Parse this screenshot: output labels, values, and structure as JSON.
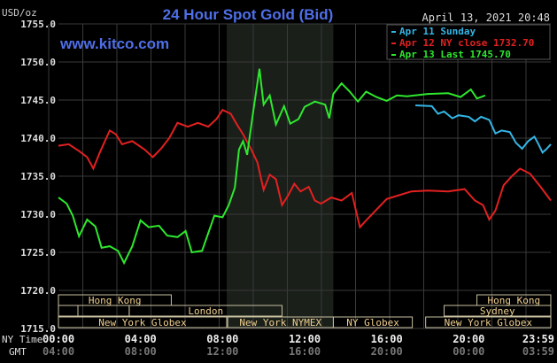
{
  "header": {
    "title": "24 Hour Spot Gold (Bid)",
    "datetime": "April 13, 2021 20:48",
    "units": "USD/oz",
    "site": "www.kitco.com"
  },
  "legend": [
    {
      "label": "Apr 11 Sunday",
      "color": "#33b5e5"
    },
    {
      "label": "Apr 12 NY close 1732.70",
      "color": "#e32020"
    },
    {
      "label": "Apr 13 Last 1745.70",
      "color": "#2ee82e"
    }
  ],
  "sessions": [
    {
      "label": "Hong Kong",
      "start": 0,
      "end": 5.5,
      "row": 0,
      "show": true
    },
    {
      "label": "Hong Kong",
      "start": 20.4,
      "end": 24,
      "row": 0,
      "show": true
    },
    {
      "label": "",
      "start": 0,
      "end": 0.95,
      "row": 1,
      "show": false
    },
    {
      "label": "",
      "start": 0.95,
      "end": 3.45,
      "row": 1,
      "show": false
    },
    {
      "label": "London",
      "start": 3.45,
      "end": 10.9,
      "row": 1,
      "show": true
    },
    {
      "label": "Sydney",
      "start": 18.8,
      "end": 24,
      "row": 1,
      "show": true
    },
    {
      "label": "New York Globex",
      "start": 0,
      "end": 8.2,
      "row": 2,
      "show": true
    },
    {
      "label": "New York NYMEX",
      "start": 8.25,
      "end": 13.4,
      "row": 2,
      "show": true
    },
    {
      "label": "NY Globex",
      "start": 13.4,
      "end": 17.25,
      "row": 2,
      "show": true
    },
    {
      "label": "New York Globex",
      "start": 17.9,
      "end": 24,
      "row": 2,
      "show": true
    }
  ],
  "time_labels": {
    "ny_label": "NY Time",
    "gmt_label": "GMT",
    "ny": [
      [
        "00:00",
        0
      ],
      [
        "04:00",
        4
      ],
      [
        "08:00",
        8
      ],
      [
        "12:00",
        12
      ],
      [
        "16:00",
        16
      ],
      [
        "20:00",
        20
      ],
      [
        "23:59",
        24
      ]
    ],
    "gmt": [
      "04:00",
      "08:00",
      "12:00",
      "16:00",
      "20:00",
      "00:00",
      "03:59"
    ]
  },
  "chart_data": {
    "type": "line",
    "title": "24 Hour Spot Gold (Bid)",
    "ylabel": "USD/oz",
    "xlabel": "NY Time",
    "ylim": [
      1715,
      1755
    ],
    "xlim": [
      0,
      24
    ],
    "yticks": [
      "1755.0",
      "1750.0",
      "1745.0",
      "1740.0",
      "1735.0",
      "1730.0",
      "1725.0",
      "1720.0",
      "1715.0"
    ],
    "shaded_hours": [
      8.2,
      13.4
    ],
    "series": [
      {
        "name": "Apr 11 Sunday",
        "color": "#33b5e5",
        "points": [
          [
            17.4,
            1744.3
          ],
          [
            18.2,
            1744.2
          ],
          [
            18.5,
            1743.2
          ],
          [
            18.8,
            1743.5
          ],
          [
            19.2,
            1742.6
          ],
          [
            19.5,
            1743
          ],
          [
            20,
            1742.8
          ],
          [
            20.3,
            1742.2
          ],
          [
            20.6,
            1742.8
          ],
          [
            21,
            1742.4
          ],
          [
            21.3,
            1740.6
          ],
          [
            21.6,
            1741
          ],
          [
            22,
            1740.8
          ],
          [
            22.3,
            1739.4
          ],
          [
            22.6,
            1738.6
          ],
          [
            22.9,
            1739.6
          ],
          [
            23.2,
            1740.2
          ],
          [
            23.4,
            1739.2
          ],
          [
            23.6,
            1738.1
          ],
          [
            23.8,
            1738.6
          ],
          [
            24,
            1739.2
          ]
        ]
      },
      {
        "name": "Apr 12 NY close 1732.70",
        "color": "#e32020",
        "points": [
          [
            0,
            1739
          ],
          [
            0.5,
            1739.2
          ],
          [
            1,
            1738.3
          ],
          [
            1.4,
            1737.5
          ],
          [
            1.7,
            1736
          ],
          [
            2,
            1738
          ],
          [
            2.5,
            1741
          ],
          [
            2.8,
            1740.5
          ],
          [
            3.1,
            1739.2
          ],
          [
            3.6,
            1739.6
          ],
          [
            4.2,
            1738.5
          ],
          [
            4.6,
            1737.5
          ],
          [
            5,
            1738.6
          ],
          [
            5.4,
            1740
          ],
          [
            5.8,
            1742
          ],
          [
            6.3,
            1741.5
          ],
          [
            6.8,
            1742
          ],
          [
            7.3,
            1741.5
          ],
          [
            7.7,
            1742.5
          ],
          [
            8,
            1743.7
          ],
          [
            8.4,
            1743.2
          ],
          [
            8.7,
            1741.8
          ],
          [
            9,
            1740.5
          ],
          [
            9.4,
            1738.5
          ],
          [
            9.7,
            1736.8
          ],
          [
            10,
            1733.2
          ],
          [
            10.3,
            1735.2
          ],
          [
            10.6,
            1734.6
          ],
          [
            10.9,
            1731.2
          ],
          [
            11.2,
            1732.5
          ],
          [
            11.5,
            1734
          ],
          [
            11.8,
            1733
          ],
          [
            12.2,
            1733.6
          ],
          [
            12.5,
            1731.8
          ],
          [
            12.8,
            1731.4
          ],
          [
            13.3,
            1732.2
          ],
          [
            13.8,
            1731.8
          ],
          [
            14.3,
            1732.8
          ],
          [
            14.5,
            1730.5
          ],
          [
            14.7,
            1728.3
          ],
          [
            15,
            1729.2
          ],
          [
            15.5,
            1730.6
          ],
          [
            16,
            1732
          ],
          [
            16.6,
            1732.5
          ],
          [
            17.2,
            1733
          ],
          [
            18,
            1733.1
          ],
          [
            19,
            1733
          ],
          [
            19.8,
            1733.3
          ],
          [
            20.3,
            1731.8
          ],
          [
            20.7,
            1731.2
          ],
          [
            21,
            1729.3
          ],
          [
            21.3,
            1730.5
          ],
          [
            21.7,
            1733.8
          ],
          [
            22.1,
            1735
          ],
          [
            22.5,
            1736
          ],
          [
            23,
            1735.3
          ],
          [
            23.5,
            1733.6
          ],
          [
            24,
            1731.8
          ]
        ]
      },
      {
        "name": "Apr 13 Last 1745.70",
        "color": "#2ee82e",
        "points": [
          [
            0,
            1732.2
          ],
          [
            0.4,
            1731.4
          ],
          [
            0.7,
            1729.8
          ],
          [
            1,
            1727.1
          ],
          [
            1.4,
            1729.3
          ],
          [
            1.8,
            1728.4
          ],
          [
            2.1,
            1725.6
          ],
          [
            2.5,
            1725.8
          ],
          [
            2.9,
            1725.2
          ],
          [
            3.2,
            1723.6
          ],
          [
            3.6,
            1725.8
          ],
          [
            4,
            1729.2
          ],
          [
            4.4,
            1728.3
          ],
          [
            4.9,
            1728.5
          ],
          [
            5.3,
            1727.2
          ],
          [
            5.8,
            1727
          ],
          [
            6.2,
            1727.8
          ],
          [
            6.5,
            1725
          ],
          [
            7,
            1725.2
          ],
          [
            7.3,
            1727.5
          ],
          [
            7.6,
            1729.8
          ],
          [
            8,
            1729.6
          ],
          [
            8.3,
            1731.2
          ],
          [
            8.6,
            1733.5
          ],
          [
            8.8,
            1738.5
          ],
          [
            9.0,
            1739.6
          ],
          [
            9.2,
            1737.8
          ],
          [
            9.5,
            1743.6
          ],
          [
            9.8,
            1749.1
          ],
          [
            10,
            1744.4
          ],
          [
            10.3,
            1745.6
          ],
          [
            10.6,
            1741.8
          ],
          [
            11,
            1744.2
          ],
          [
            11.3,
            1741.9
          ],
          [
            11.7,
            1742.5
          ],
          [
            12,
            1744.1
          ],
          [
            12.5,
            1744.8
          ],
          [
            13,
            1744.4
          ],
          [
            13.2,
            1742.6
          ],
          [
            13.4,
            1745.8
          ],
          [
            13.8,
            1747.2
          ],
          [
            14.2,
            1746.1
          ],
          [
            14.6,
            1744.8
          ],
          [
            15,
            1746.1
          ],
          [
            15.5,
            1745.4
          ],
          [
            16,
            1744.9
          ],
          [
            16.5,
            1745.6
          ],
          [
            17,
            1745.5
          ],
          [
            18,
            1745.8
          ],
          [
            19,
            1745.9
          ],
          [
            19.6,
            1745.4
          ],
          [
            20.1,
            1746.4
          ],
          [
            20.4,
            1745.2
          ],
          [
            20.8,
            1745.6
          ]
        ]
      }
    ]
  }
}
